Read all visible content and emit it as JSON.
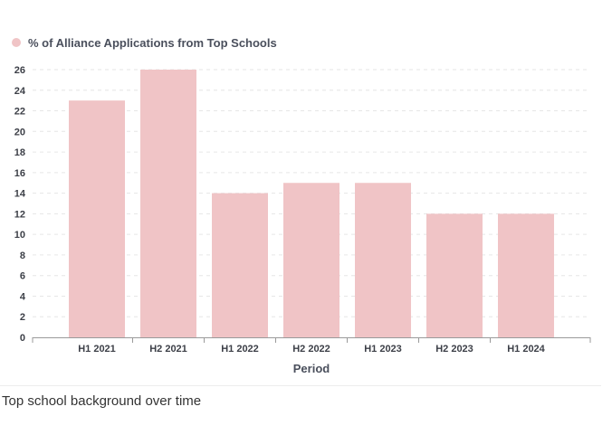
{
  "chart_data": {
    "type": "bar",
    "categories": [
      "H1 2021",
      "H2 2021",
      "H1 2022",
      "H2 2022",
      "H1 2023",
      "H2 2023",
      "H1 2024"
    ],
    "series": [
      {
        "name": "% of Alliance Applications from Top Schools",
        "values": [
          23,
          26,
          14,
          15,
          15,
          12,
          12
        ],
        "color": "#f0c4c6"
      }
    ],
    "xlabel": "Period",
    "ylabel": "",
    "ylim": [
      0,
      26
    ],
    "yticks": [
      0,
      2,
      4,
      6,
      8,
      10,
      12,
      14,
      16,
      18,
      20,
      22,
      24,
      26
    ],
    "grid": true,
    "legend_position": "top-left"
  },
  "caption": "Top school background over time"
}
